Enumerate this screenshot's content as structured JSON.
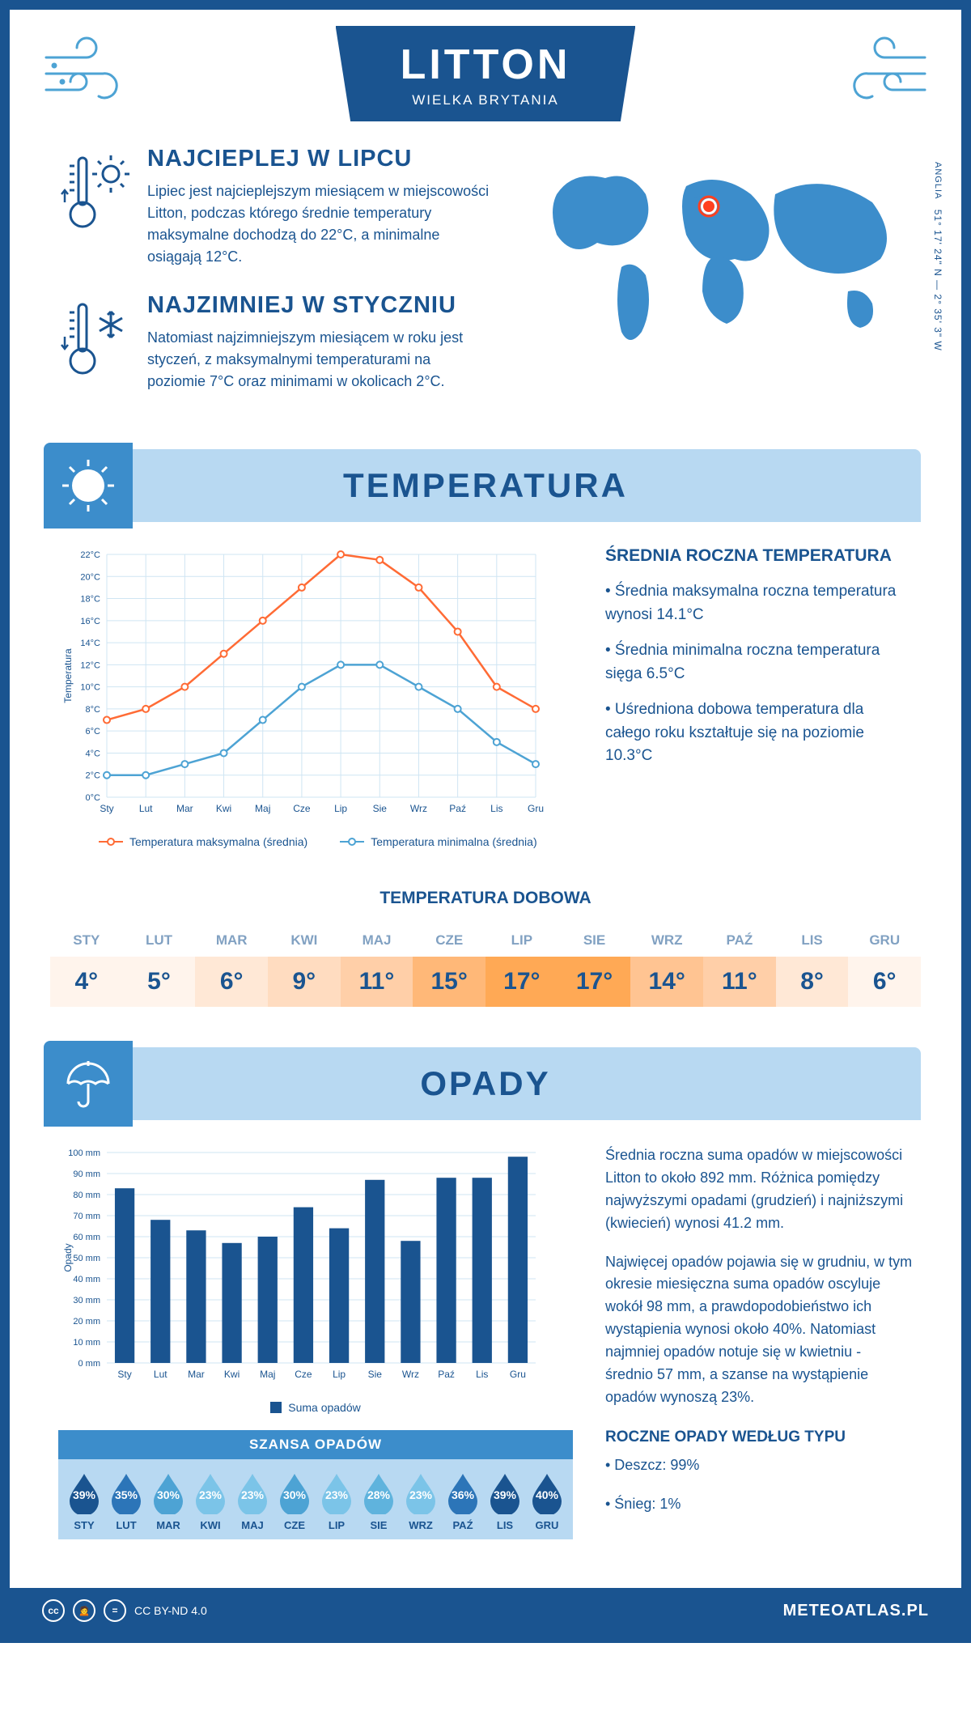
{
  "header": {
    "title": "LITTON",
    "subtitle": "WIELKA BRYTANIA"
  },
  "coords": {
    "lat": "51° 17' 24\" N — 2° 35' 3\" W",
    "region": "ANGLIA"
  },
  "facts": {
    "hot": {
      "title": "NAJCIEPLEJ W LIPCU",
      "text": "Lipiec jest najcieplejszym miesiącem w miejscowości Litton, podczas którego średnie temperatury maksymalne dochodzą do 22°C, a minimalne osiągają 12°C."
    },
    "cold": {
      "title": "NAJZIMNIEJ W STYCZNIU",
      "text": "Natomiast najzimniejszym miesiącem w roku jest styczeń, z maksymalnymi temperaturami na poziomie 7°C oraz minimami w okolicach 2°C."
    }
  },
  "section_temp": "TEMPERATURA",
  "section_precip": "OPADY",
  "months": [
    "Sty",
    "Lut",
    "Mar",
    "Kwi",
    "Maj",
    "Cze",
    "Lip",
    "Sie",
    "Wrz",
    "Paź",
    "Lis",
    "Gru"
  ],
  "months_upper": [
    "STY",
    "LUT",
    "MAR",
    "KWI",
    "MAJ",
    "CZE",
    "LIP",
    "SIE",
    "WRZ",
    "PAŹ",
    "LIS",
    "GRU"
  ],
  "temp_chart": {
    "type": "line",
    "ylabel": "Temperatura",
    "ylim": [
      0,
      22
    ],
    "ytick_step": 2,
    "max_series": [
      7,
      8,
      10,
      13,
      16,
      19,
      22,
      21.5,
      19,
      15,
      10,
      8
    ],
    "min_series": [
      2,
      2,
      3,
      4,
      7,
      10,
      12,
      12,
      10,
      8,
      5,
      3
    ],
    "max_color": "#ff6b35",
    "min_color": "#4da3d4",
    "grid_color": "#cfe5f3",
    "background": "#ffffff",
    "legend_max": "Temperatura maksymalna (średnia)",
    "legend_min": "Temperatura minimalna (średnia)"
  },
  "temp_info": {
    "title": "ŚREDNIA ROCZNA TEMPERATURA",
    "b1": "• Średnia maksymalna roczna temperatura wynosi 14.1°C",
    "b2": "• Średnia minimalna roczna temperatura sięga 6.5°C",
    "b3": "• Uśredniona dobowa temperatura dla całego roku kształtuje się na poziomie 10.3°C"
  },
  "daily": {
    "title": "TEMPERATURA DOBOWA",
    "values": [
      "4°",
      "5°",
      "6°",
      "9°",
      "11°",
      "15°",
      "17°",
      "17°",
      "14°",
      "11°",
      "8°",
      "6°"
    ],
    "cell_colors": [
      "#fff4ec",
      "#fff4ec",
      "#ffe8d6",
      "#ffdcc0",
      "#ffcfa8",
      "#ffb878",
      "#ffa955",
      "#ffa955",
      "#ffc492",
      "#ffcfa8",
      "#ffe8d6",
      "#fff4ec"
    ]
  },
  "precip_chart": {
    "type": "bar",
    "ylabel": "Opady",
    "ylim": [
      0,
      100
    ],
    "ytick_step": 10,
    "values": [
      83,
      68,
      63,
      57,
      60,
      74,
      64,
      87,
      58,
      88,
      88,
      98
    ],
    "bar_color": "#1a5490",
    "grid_color": "#cfe5f3",
    "legend": "Suma opadów"
  },
  "precip_info": {
    "p1": "Średnia roczna suma opadów w miejscowości Litton to około 892 mm. Różnica pomiędzy najwyższymi opadami (grudzień) i najniższymi (kwiecień) wynosi 41.2 mm.",
    "p2": "Najwięcej opadów pojawia się w grudniu, w tym okresie miesięczna suma opadów oscyluje wokół 98 mm, a prawdopodobieństwo ich wystąpienia wynosi około 40%. Natomiast najmniej opadów notuje się w kwietniu - średnio 57 mm, a szanse na wystąpienie opadów wynoszą 23%.",
    "type_title": "ROCZNE OPADY WEDŁUG TYPU",
    "rain": "• Deszcz: 99%",
    "snow": "• Śnieg: 1%"
  },
  "chance": {
    "title": "SZANSA OPADÓW",
    "values": [
      "39%",
      "35%",
      "30%",
      "23%",
      "23%",
      "30%",
      "23%",
      "28%",
      "23%",
      "36%",
      "39%",
      "40%"
    ],
    "colors": [
      "#1a5490",
      "#2c75b8",
      "#4da3d4",
      "#7bc4e8",
      "#7bc4e8",
      "#4da3d4",
      "#7bc4e8",
      "#5fb3dd",
      "#7bc4e8",
      "#2c75b8",
      "#1a5490",
      "#1a5490"
    ]
  },
  "footer": {
    "license": "CC BY-ND 4.0",
    "site": "METEOATLAS.PL"
  }
}
